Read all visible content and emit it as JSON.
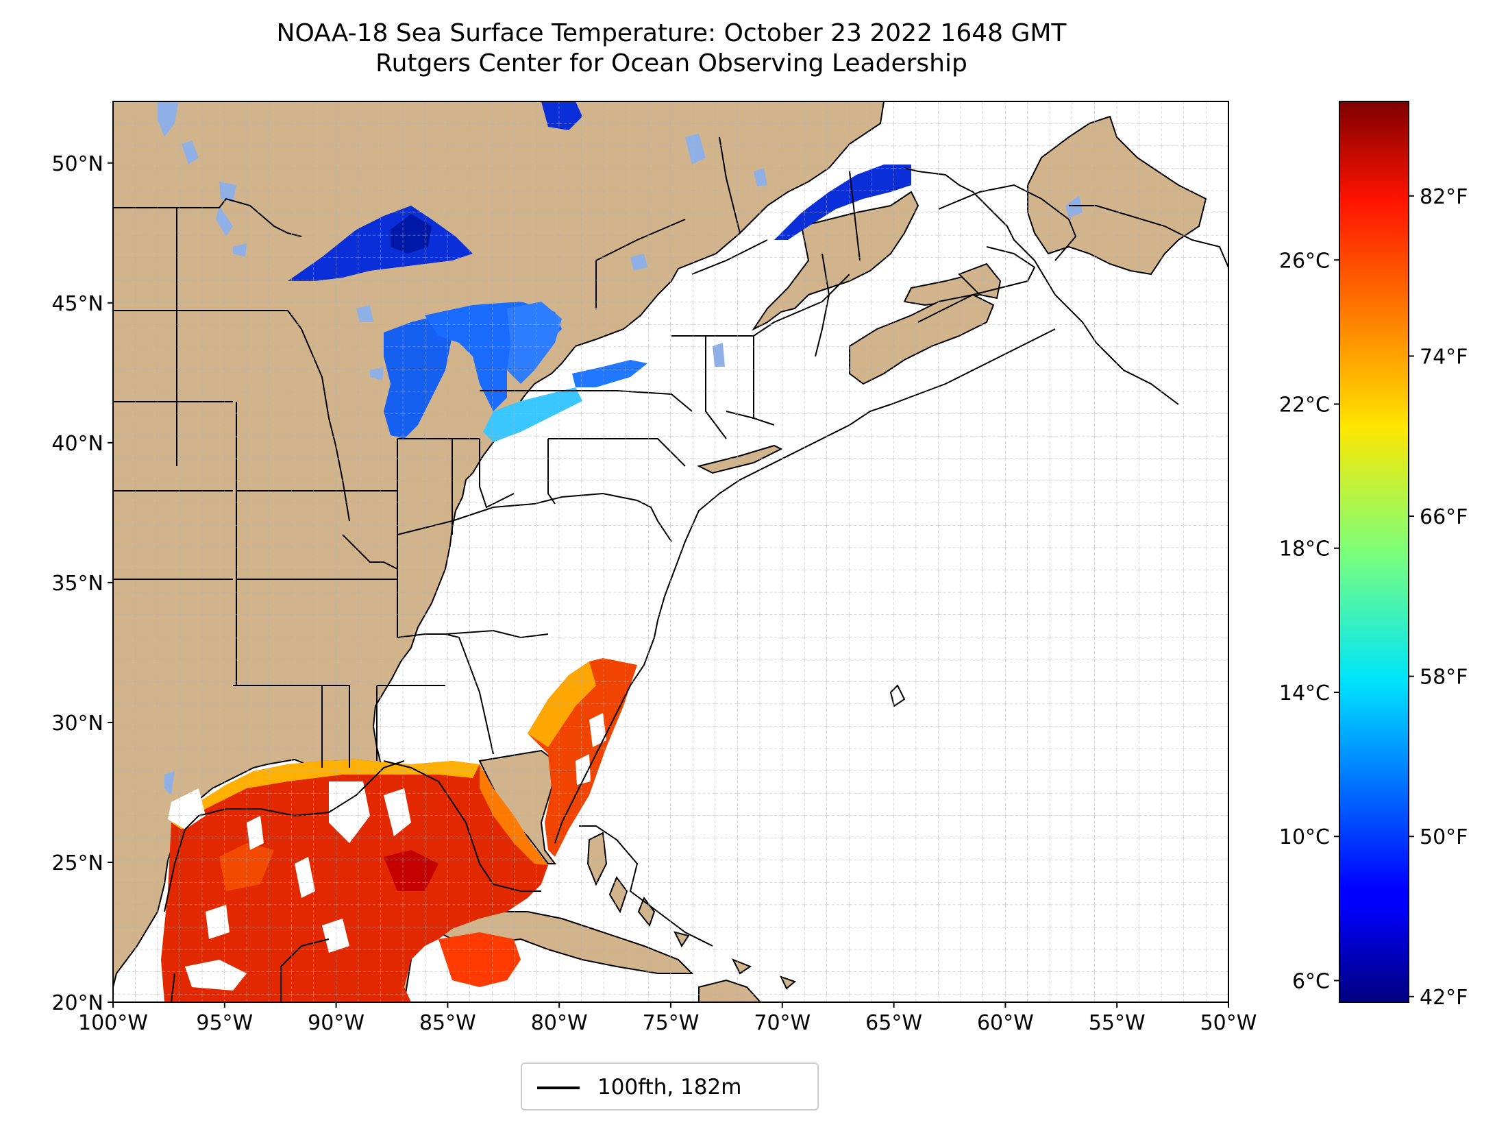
{
  "title": {
    "line1": "NOAA-18 Sea Surface Temperature: October 23 2022 1648 GMT",
    "line2": "Rutgers Center for Ocean Observing Leadership"
  },
  "map": {
    "lon_range": [
      -100,
      -50
    ],
    "lat_range": [
      20,
      52.2
    ],
    "lon_ticks": [
      "100°W",
      "95°W",
      "90°W",
      "85°W",
      "80°W",
      "75°W",
      "70°W",
      "65°W",
      "60°W",
      "55°W",
      "50°W"
    ],
    "lat_ticks": [
      "20°N",
      "25°N",
      "30°N",
      "35°N",
      "40°N",
      "45°N",
      "50°N"
    ],
    "land_color": "#d2b48c",
    "ocean_color": "#ffffff",
    "inland_water_color": "#8fb0e6",
    "grid": "dashed, 1 degree"
  },
  "colorbar": {
    "colormap": "jet",
    "celsius_ticks": [
      "6°C",
      "10°C",
      "14°C",
      "18°C",
      "22°C",
      "26°C"
    ],
    "fahrenheit_ticks": [
      "42°F",
      "50°F",
      "58°F",
      "66°F",
      "74°F",
      "82°F"
    ],
    "range_c": [
      5.4,
      30.4
    ]
  },
  "legend": {
    "label": "100fth, 182m"
  },
  "colors": {
    "cold_lakes": "#1e3cff",
    "warm_gulf": "#e63000",
    "warm_gulf_edge": "#ff8c00"
  }
}
